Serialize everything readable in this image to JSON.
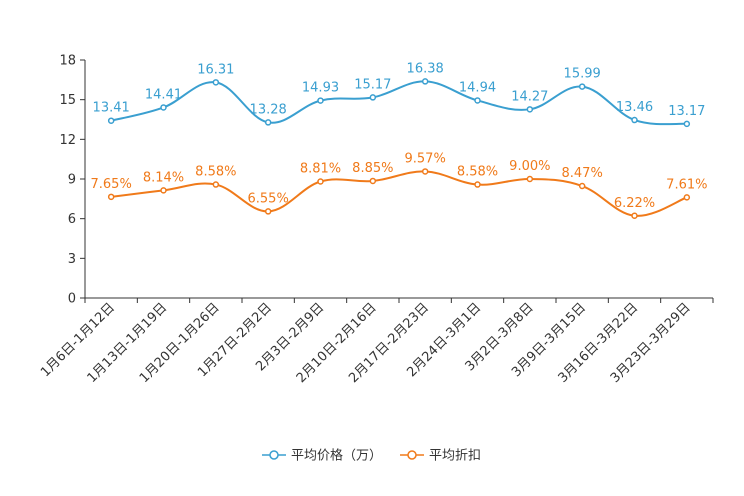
{
  "chart_data": {
    "type": "line",
    "title": "",
    "xlabel": "",
    "ylabel": "",
    "ylim": [
      0,
      18
    ],
    "yticks": [
      0,
      3,
      6,
      9,
      12,
      15,
      18
    ],
    "grid": false,
    "legend_position": "bottom",
    "categories": [
      "1月6日-1月12日",
      "1月13日-1月19日",
      "1月20日-1月26日",
      "1月27日-2月2日",
      "2月3日-2月9日",
      "2月10日-2月16日",
      "2月17日-2月23日",
      "2月24日-3月1日",
      "3月2日-3月8日",
      "3月9日-3月15日",
      "3月16日-3月22日",
      "3月23日-3月29日"
    ],
    "series": [
      {
        "name": "平均价格（万）",
        "color": "#3a9fd0",
        "values": [
          13.41,
          14.41,
          16.31,
          13.28,
          14.93,
          15.17,
          16.38,
          14.94,
          14.27,
          15.99,
          13.46,
          13.17
        ],
        "labels": [
          "13.41",
          "14.41",
          "16.31",
          "13.28",
          "14.93",
          "15.17",
          "16.38",
          "14.94",
          "14.27",
          "15.99",
          "13.46",
          "13.17"
        ]
      },
      {
        "name": "平均折扣",
        "color": "#f07a1a",
        "values": [
          7.65,
          8.14,
          8.58,
          6.55,
          8.81,
          8.85,
          9.57,
          8.58,
          9.0,
          8.47,
          6.22,
          7.61
        ],
        "labels": [
          "7.65%",
          "8.14%",
          "8.58%",
          "6.55%",
          "8.81%",
          "8.85%",
          "9.57%",
          "8.58%",
          "9.00%",
          "8.47%",
          "6.22%",
          "7.61%"
        ]
      }
    ]
  }
}
